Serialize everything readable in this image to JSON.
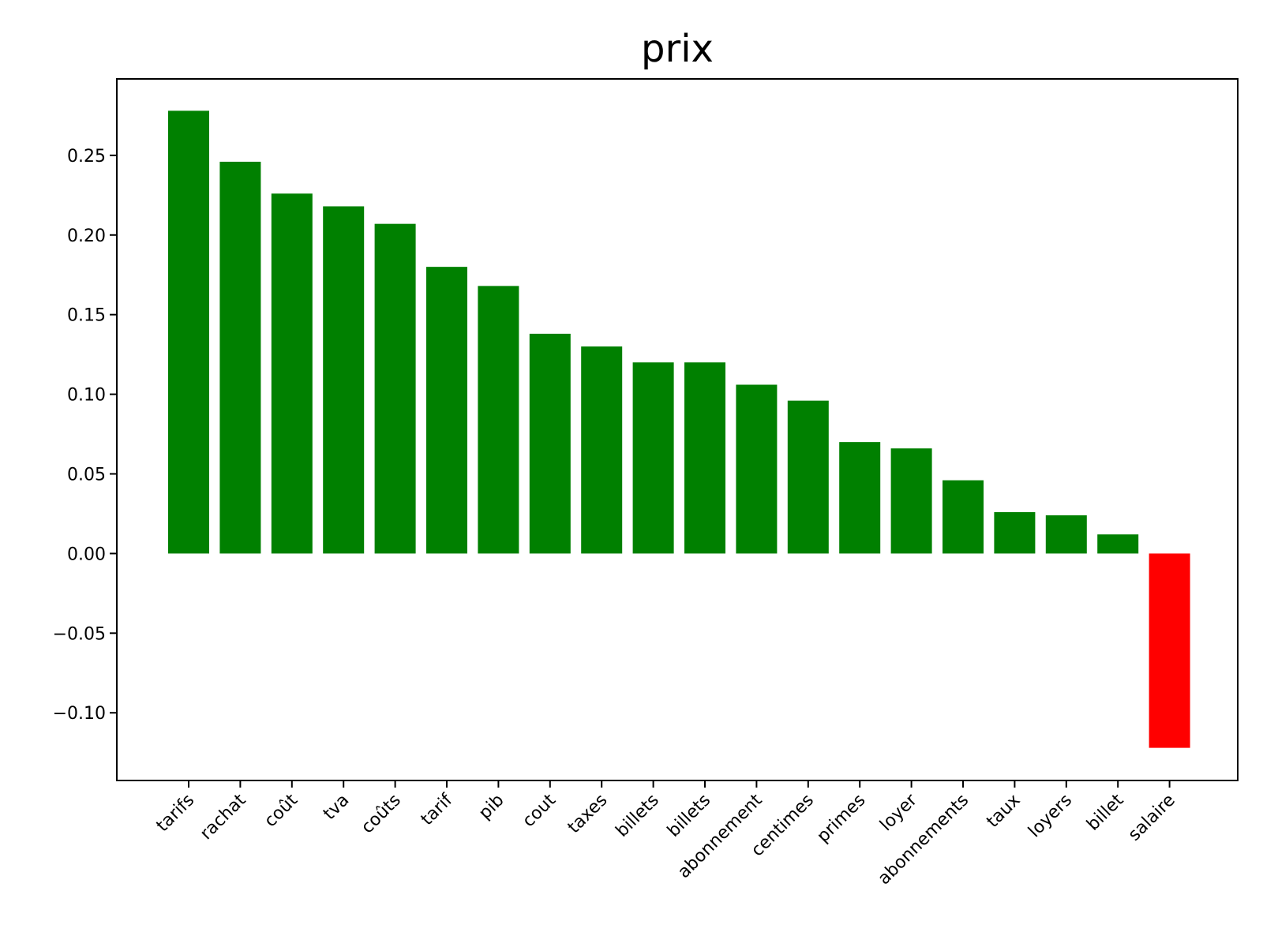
{
  "chart_data": {
    "type": "bar",
    "title": "prix",
    "xlabel": "",
    "ylabel": "",
    "categories": [
      "tarifs",
      "rachat",
      "coût",
      "tva",
      "coûts",
      "tarif",
      "pib",
      "cout",
      "taxes",
      "billets",
      "billets",
      "abonnement",
      "centimes",
      "primes",
      "loyer",
      "abonnements",
      "taux",
      "loyers",
      "billet",
      "salaire"
    ],
    "values": [
      0.278,
      0.246,
      0.226,
      0.218,
      0.207,
      0.18,
      0.168,
      0.138,
      0.13,
      0.12,
      0.12,
      0.106,
      0.096,
      0.07,
      0.066,
      0.046,
      0.026,
      0.024,
      0.012,
      -0.122
    ],
    "ylim": [
      -0.1425,
      0.298
    ],
    "yticks": [
      -0.1,
      -0.05,
      0.0,
      0.05,
      0.1,
      0.15,
      0.2,
      0.25
    ],
    "ytick_labels": [
      "−0.10",
      "−0.05",
      "0.00",
      "0.05",
      "0.10",
      "0.15",
      "0.20",
      "0.25"
    ],
    "positive_color": "#008000",
    "negative_color": "#ff0000",
    "grid": false,
    "legend": "none"
  }
}
